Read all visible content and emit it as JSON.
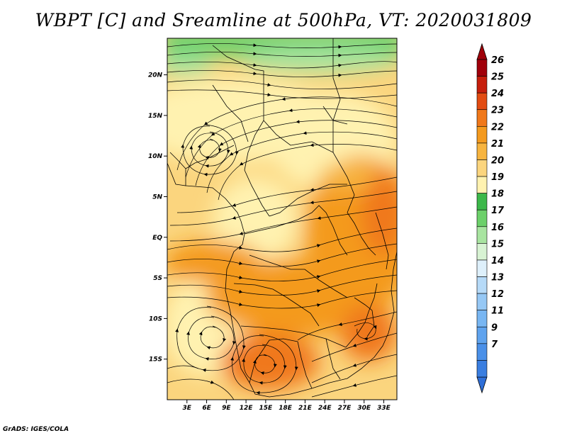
{
  "title": "WBPT [C] and Sreamline at 500hPa, VT: 2020031809",
  "footer": "GrADS: IGES/COLA",
  "map": {
    "lon_range": [
      0,
      35
    ],
    "lat_range": [
      -20,
      24.5
    ],
    "x_ticks": [
      "3E",
      "6E",
      "9E",
      "12E",
      "15E",
      "18E",
      "21E",
      "24E",
      "27E",
      "30E",
      "33E"
    ],
    "x_tick_values": [
      3,
      6,
      9,
      12,
      15,
      18,
      21,
      24,
      27,
      30,
      33
    ],
    "y_ticks": [
      "20N",
      "15N",
      "10N",
      "5N",
      "EQ",
      "5S",
      "10S",
      "15S"
    ],
    "y_tick_values": [
      20,
      15,
      10,
      5,
      0,
      -5,
      -10,
      -15
    ]
  },
  "colorbar": {
    "labels": [
      "7",
      "9",
      "11",
      "12",
      "13",
      "14",
      "15",
      "16",
      "17",
      "18",
      "19",
      "20",
      "21",
      "22",
      "23",
      "24",
      "25",
      "26"
    ],
    "colors": [
      "#3a7ee0",
      "#4a90e8",
      "#5fa3ee",
      "#78b6f2",
      "#96c8f5",
      "#b6daf8",
      "#def0fb",
      "#d8f3d3",
      "#a8e4a0",
      "#6cd06a",
      "#3cb84a",
      "#fff2b0",
      "#fbd57e",
      "#f7b43f",
      "#f49a1e",
      "#f0781a",
      "#e24c12",
      "#c61e0c",
      "#a0000a"
    ],
    "low_arrow_color": "#2f6fd8",
    "high_arrow_color": "#a0000a"
  }
}
